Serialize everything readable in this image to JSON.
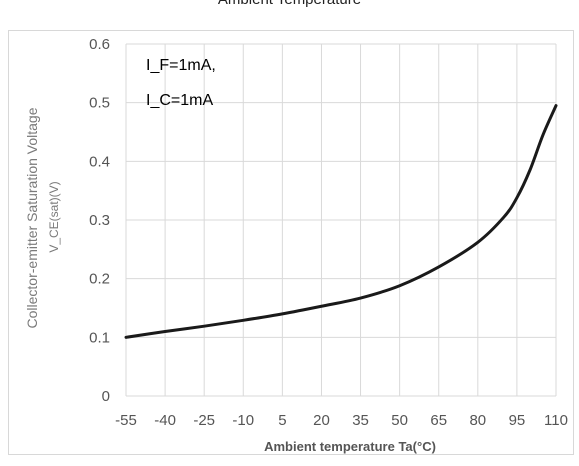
{
  "chart_data": {
    "type": "line",
    "title": "Ambient Temperature",
    "xlabel": "Ambient temperature Ta(°C)",
    "ylabel": "Collector-emitter Saturation Voltage",
    "ylabel_sub": "V_CE(sat)(V)",
    "xticks": [
      "-55",
      "-40",
      "-25",
      "-10",
      "5",
      "20",
      "35",
      "50",
      "65",
      "80",
      "95",
      "110"
    ],
    "yticks": [
      "0",
      "0.1",
      "0.2",
      "0.3",
      "0.4",
      "0.5",
      "0.6"
    ],
    "xlim": [
      -55,
      110
    ],
    "ylim": [
      0,
      0.6
    ],
    "grid": true,
    "annotations": [
      "I_F=1mA,",
      "I_C=1mA"
    ],
    "series": [
      {
        "x": [
          -55,
          -40,
          -25,
          -10,
          5,
          20,
          35,
          50,
          65,
          80,
          90,
          95,
          100,
          105,
          110
        ],
        "y": [
          0.1,
          0.11,
          0.119,
          0.129,
          0.14,
          0.153,
          0.167,
          0.188,
          0.22,
          0.262,
          0.305,
          0.338,
          0.385,
          0.445,
          0.495
        ]
      }
    ]
  },
  "colors": {
    "line": "#1a1a1a",
    "grid": "#d9d9d9",
    "tick_text": "#555555"
  }
}
